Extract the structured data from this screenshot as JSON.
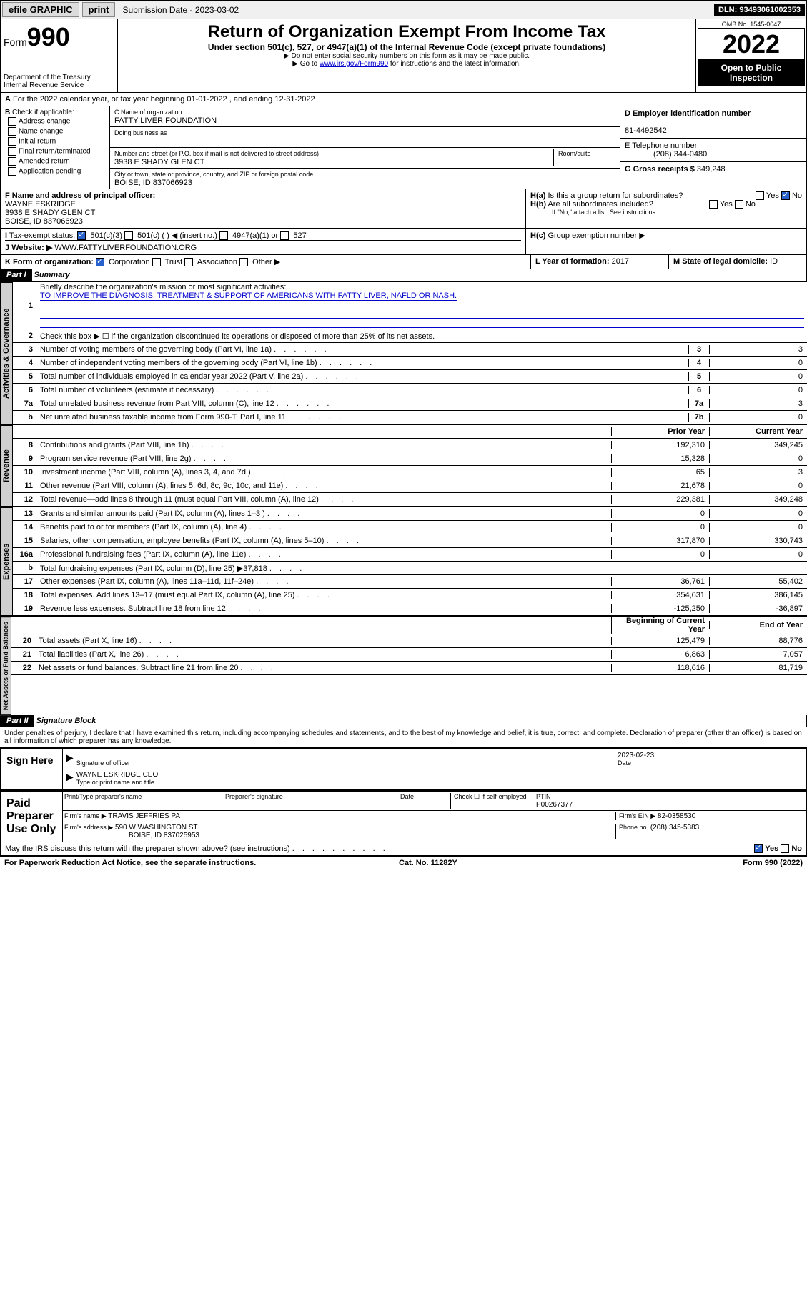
{
  "topbar": {
    "efile": "efile GRAPHIC",
    "print": "print",
    "submission_label": "Submission Date - 2023-03-02",
    "dln": "DLN: 93493061002353"
  },
  "header": {
    "form_prefix": "Form",
    "form_no": "990",
    "dept": "Department of the Treasury",
    "irs": "Internal Revenue Service",
    "title": "Return of Organization Exempt From Income Tax",
    "sub1": "Under section 501(c), 527, or 4947(a)(1) of the Internal Revenue Code (except private foundations)",
    "sub2": "▶ Do not enter social security numbers on this form as it may be made public.",
    "sub3_pre": "▶ Go to ",
    "sub3_link": "www.irs.gov/Form990",
    "sub3_post": " for instructions and the latest information.",
    "omb": "OMB No. 1545-0047",
    "year": "2022",
    "opi": "Open to Public Inspection"
  },
  "A": {
    "text": "For the 2022 calendar year, or tax year beginning 01-01-2022    , and ending 12-31-2022"
  },
  "B": {
    "label": "Check if applicable:",
    "opts": [
      "Address change",
      "Name change",
      "Initial return",
      "Final return/terminated",
      "Amended return",
      "Application pending"
    ]
  },
  "C": {
    "name_lbl": "C Name of organization",
    "name": "FATTY LIVER FOUNDATION",
    "dba_lbl": "Doing business as",
    "addr_lbl": "Number and street (or P.O. box if mail is not delivered to street address)",
    "addr": "3938 E SHADY GLEN CT",
    "room_lbl": "Room/suite",
    "city_lbl": "City or town, state or province, country, and ZIP or foreign postal code",
    "city": "BOISE, ID  837066923"
  },
  "D": {
    "lbl": "D Employer identification number",
    "val": "81-4492542"
  },
  "E": {
    "lbl": "E Telephone number",
    "val": "(208) 344-0480"
  },
  "G": {
    "lbl": "G Gross receipts $",
    "val": "349,248"
  },
  "F": {
    "lbl": "F Name and address of principal officer:",
    "name": "WAYNE ESKRIDGE",
    "addr": "3938 E SHADY GLEN CT",
    "city": "BOISE, ID  837066923"
  },
  "H": {
    "a": "Is this a group return for subordinates?",
    "b": "Are all subordinates included?",
    "bnote": "If \"No,\" attach a list. See instructions.",
    "c": "Group exemption number ▶"
  },
  "I": {
    "lbl": "Tax-exempt status:",
    "o1": "501(c)(3)",
    "o2": "501(c) (   ) ◀ (insert no.)",
    "o3": "4947(a)(1) or",
    "o4": "527"
  },
  "J": {
    "lbl": "Website: ▶",
    "val": "WWW.FATTYLIVERFOUNDATION.ORG"
  },
  "K": {
    "lbl": "K Form of organization:",
    "o1": "Corporation",
    "o2": "Trust",
    "o3": "Association",
    "o4": "Other ▶"
  },
  "L": {
    "lbl": "L Year of formation:",
    "val": "2017"
  },
  "M": {
    "lbl": "M State of legal domicile:",
    "val": "ID"
  },
  "part1": {
    "hdr": "Part I",
    "title": "Summary",
    "l1": "Briefly describe the organization's mission or most significant activities:",
    "l1v": "TO IMPROVE THE DIAGNOSIS, TREATMENT & SUPPORT OF AMERICANS WITH FATTY LIVER, NAFLD OR NASH.",
    "l2": "Check this box ▶ ☐ if the organization discontinued its operations or disposed of more than 25% of its net assets.",
    "tabs": {
      "ag": "Activities & Governance",
      "rev": "Revenue",
      "exp": "Expenses",
      "na": "Net Assets or Fund Balances"
    },
    "cols": {
      "prior": "Prior Year",
      "curr": "Current Year",
      "beg": "Beginning of Current Year",
      "end": "End of Year"
    },
    "rows_ag": [
      {
        "n": "3",
        "t": "Number of voting members of the governing body (Part VI, line 1a)",
        "nb": "3",
        "v": "3"
      },
      {
        "n": "4",
        "t": "Number of independent voting members of the governing body (Part VI, line 1b)",
        "nb": "4",
        "v": "0"
      },
      {
        "n": "5",
        "t": "Total number of individuals employed in calendar year 2022 (Part V, line 2a)",
        "nb": "5",
        "v": "0"
      },
      {
        "n": "6",
        "t": "Total number of volunteers (estimate if necessary)",
        "nb": "6",
        "v": "0"
      },
      {
        "n": "7a",
        "t": "Total unrelated business revenue from Part VIII, column (C), line 12",
        "nb": "7a",
        "v": "3"
      },
      {
        "n": "b",
        "t": "Net unrelated business taxable income from Form 990-T, Part I, line 11",
        "nb": "7b",
        "v": "0"
      }
    ],
    "rows_rev": [
      {
        "n": "8",
        "t": "Contributions and grants (Part VIII, line 1h)",
        "p": "192,310",
        "c": "349,245"
      },
      {
        "n": "9",
        "t": "Program service revenue (Part VIII, line 2g)",
        "p": "15,328",
        "c": "0"
      },
      {
        "n": "10",
        "t": "Investment income (Part VIII, column (A), lines 3, 4, and 7d )",
        "p": "65",
        "c": "3"
      },
      {
        "n": "11",
        "t": "Other revenue (Part VIII, column (A), lines 5, 6d, 8c, 9c, 10c, and 11e)",
        "p": "21,678",
        "c": "0"
      },
      {
        "n": "12",
        "t": "Total revenue—add lines 8 through 11 (must equal Part VIII, column (A), line 12)",
        "p": "229,381",
        "c": "349,248"
      }
    ],
    "rows_exp": [
      {
        "n": "13",
        "t": "Grants and similar amounts paid (Part IX, column (A), lines 1–3 )",
        "p": "0",
        "c": "0"
      },
      {
        "n": "14",
        "t": "Benefits paid to or for members (Part IX, column (A), line 4)",
        "p": "0",
        "c": "0"
      },
      {
        "n": "15",
        "t": "Salaries, other compensation, employee benefits (Part IX, column (A), lines 5–10)",
        "p": "317,870",
        "c": "330,743"
      },
      {
        "n": "16a",
        "t": "Professional fundraising fees (Part IX, column (A), line 11e)",
        "p": "0",
        "c": "0"
      },
      {
        "n": "b",
        "t": "Total fundraising expenses (Part IX, column (D), line 25) ▶37,818",
        "p": "",
        "c": ""
      },
      {
        "n": "17",
        "t": "Other expenses (Part IX, column (A), lines 11a–11d, 11f–24e)",
        "p": "36,761",
        "c": "55,402"
      },
      {
        "n": "18",
        "t": "Total expenses. Add lines 13–17 (must equal Part IX, column (A), line 25)",
        "p": "354,631",
        "c": "386,145"
      },
      {
        "n": "19",
        "t": "Revenue less expenses. Subtract line 18 from line 12",
        "p": "-125,250",
        "c": "-36,897"
      }
    ],
    "rows_na": [
      {
        "n": "20",
        "t": "Total assets (Part X, line 16)",
        "p": "125,479",
        "c": "88,776"
      },
      {
        "n": "21",
        "t": "Total liabilities (Part X, line 26)",
        "p": "6,863",
        "c": "7,057"
      },
      {
        "n": "22",
        "t": "Net assets or fund balances. Subtract line 21 from line 20",
        "p": "118,616",
        "c": "81,719"
      }
    ]
  },
  "part2": {
    "hdr": "Part II",
    "title": "Signature Block",
    "decl": "Under penalties of perjury, I declare that I have examined this return, including accompanying schedules and statements, and to the best of my knowledge and belief, it is true, correct, and complete. Declaration of preparer (other than officer) is based on all information of which preparer has any knowledge.",
    "sign_here": "Sign Here",
    "sig_off": "Signature of officer",
    "date_lbl": "Date",
    "date": "2023-02-23",
    "name": "WAYNE ESKRIDGE CEO",
    "name_lbl": "Type or print name and title",
    "paid": "Paid Preparer Use Only",
    "prep_name_lbl": "Print/Type preparer's name",
    "prep_sig_lbl": "Preparer's signature",
    "chk_lbl": "Check ☐ if self-employed",
    "ptin_lbl": "PTIN",
    "ptin": "P00267377",
    "firm_lbl": "Firm's name   ▶",
    "firm": "TRAVIS JEFFRIES PA",
    "ein_lbl": "Firm's EIN ▶",
    "ein": "82-0358530",
    "addr_lbl": "Firm's address ▶",
    "addr": "590 W WASHINGTON ST",
    "addr2": "BOISE, ID  837025953",
    "phone_lbl": "Phone no.",
    "phone": "(208) 345-5383",
    "discuss": "May the IRS discuss this return with the preparer shown above? (see instructions)"
  },
  "footer": {
    "l": "For Paperwork Reduction Act Notice, see the separate instructions.",
    "c": "Cat. No. 11282Y",
    "r": "Form 990 (2022)"
  }
}
